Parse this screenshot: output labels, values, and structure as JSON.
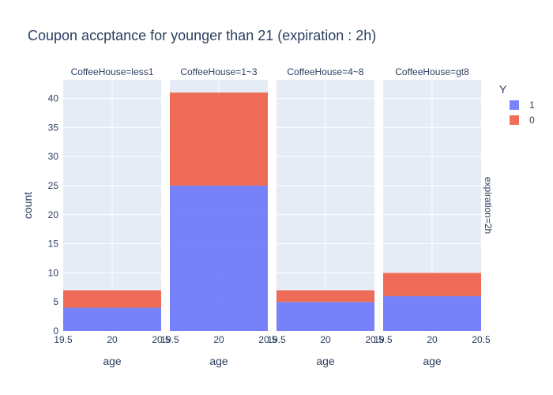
{
  "chart_data": {
    "type": "bar",
    "title": "Coupon accptance for younger than 21 (expiration : 2h)",
    "xlabel": "age",
    "ylabel": "count",
    "row_facet_label": "expiration=2h",
    "facets": [
      {
        "label": "CoffeeHouse=less1",
        "x": 20,
        "values": {
          "1": 4,
          "0": 3
        }
      },
      {
        "label": "CoffeeHouse=1~3",
        "x": 20,
        "values": {
          "1": 25,
          "0": 16
        }
      },
      {
        "label": "CoffeeHouse=4~8",
        "x": 20,
        "values": {
          "1": 5,
          "0": 2
        }
      },
      {
        "label": "CoffeeHouse=gt8",
        "x": 20,
        "values": {
          "1": 6,
          "0": 4
        }
      }
    ],
    "series": [
      {
        "name": "1",
        "color": "#636efa"
      },
      {
        "name": "0",
        "color": "#ef553b"
      }
    ],
    "legend_title": "Y",
    "legend_position": "right",
    "xlim": [
      19.5,
      20.5
    ],
    "x_ticks": [
      "19.5",
      "20",
      "20.5"
    ],
    "ylim": [
      0,
      43.2
    ],
    "y_ticks": [
      0,
      5,
      10,
      15,
      20,
      25,
      30,
      35,
      40
    ],
    "barmode": "stack",
    "grid": true,
    "plot_bg": "#e5ecf6"
  }
}
